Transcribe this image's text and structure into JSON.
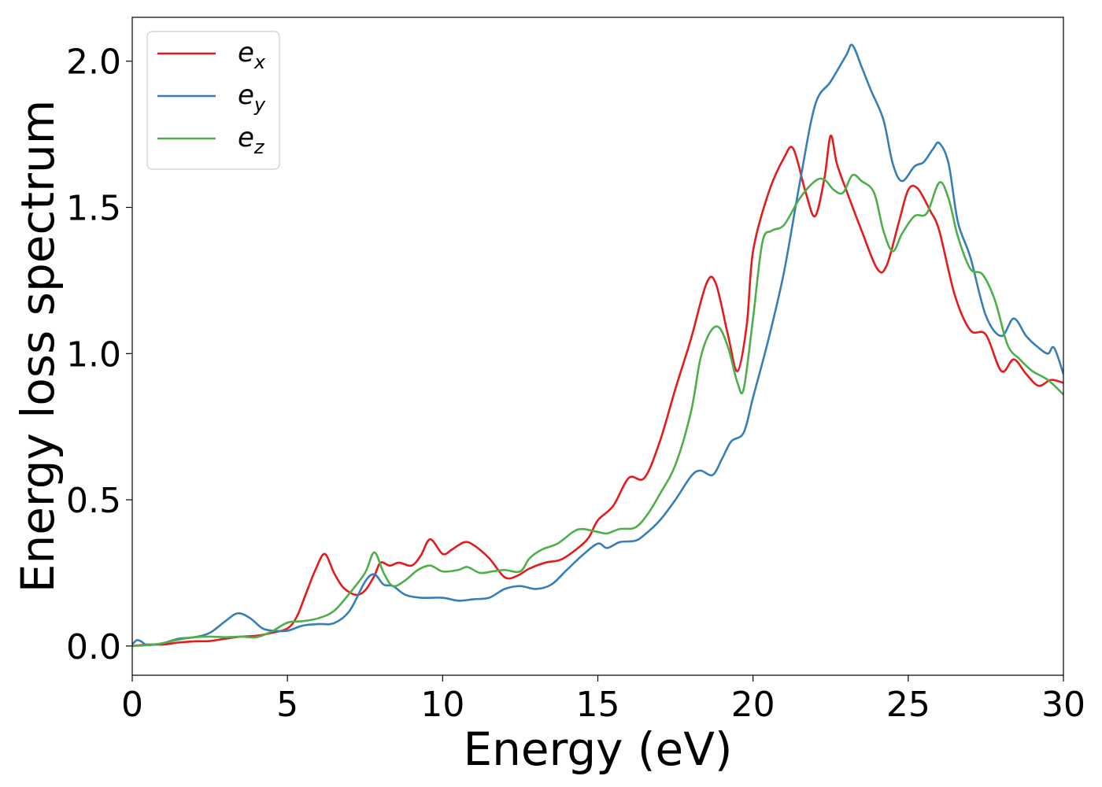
{
  "chart_data": {
    "type": "line",
    "title": "",
    "xlabel": "Energy (eV)",
    "ylabel": "Energy loss spectrum",
    "xlim": [
      0,
      30
    ],
    "ylim": [
      -0.1,
      2.15
    ],
    "xticks": [
      0,
      5,
      10,
      15,
      20,
      25,
      30
    ],
    "xtick_labels": [
      "0",
      "5",
      "10",
      "15",
      "20",
      "25",
      "30"
    ],
    "yticks": [
      0.0,
      0.5,
      1.0,
      1.5,
      2.0
    ],
    "ytick_labels": [
      "0.0",
      "0.5",
      "1.0",
      "1.5",
      "2.0"
    ],
    "grid": false,
    "legend_position": "top-left",
    "series": [
      {
        "name": "e_x",
        "legend_base": "e",
        "legend_sub": "x",
        "color": "#e41a1c",
        "points": [
          [
            0.0,
            0.0
          ],
          [
            0.5,
            0.005
          ],
          [
            1.0,
            0.005
          ],
          [
            1.5,
            0.012
          ],
          [
            2.0,
            0.016
          ],
          [
            2.5,
            0.017
          ],
          [
            3.0,
            0.025
          ],
          [
            3.5,
            0.032
          ],
          [
            4.0,
            0.035
          ],
          [
            4.5,
            0.045
          ],
          [
            5.0,
            0.06
          ],
          [
            5.3,
            0.1
          ],
          [
            5.6,
            0.18
          ],
          [
            5.9,
            0.26
          ],
          [
            6.2,
            0.315
          ],
          [
            6.5,
            0.25
          ],
          [
            6.8,
            0.2
          ],
          [
            7.2,
            0.175
          ],
          [
            7.5,
            0.19
          ],
          [
            7.8,
            0.24
          ],
          [
            8.0,
            0.285
          ],
          [
            8.3,
            0.275
          ],
          [
            8.6,
            0.285
          ],
          [
            9.0,
            0.275
          ],
          [
            9.3,
            0.31
          ],
          [
            9.6,
            0.365
          ],
          [
            10.0,
            0.315
          ],
          [
            10.3,
            0.33
          ],
          [
            10.7,
            0.355
          ],
          [
            11.0,
            0.345
          ],
          [
            11.5,
            0.3
          ],
          [
            12.0,
            0.235
          ],
          [
            12.4,
            0.24
          ],
          [
            12.8,
            0.265
          ],
          [
            13.3,
            0.285
          ],
          [
            13.8,
            0.295
          ],
          [
            14.3,
            0.33
          ],
          [
            14.7,
            0.37
          ],
          [
            15.0,
            0.43
          ],
          [
            15.5,
            0.48
          ],
          [
            16.0,
            0.575
          ],
          [
            16.5,
            0.575
          ],
          [
            17.0,
            0.7
          ],
          [
            17.5,
            0.88
          ],
          [
            18.0,
            1.05
          ],
          [
            18.5,
            1.24
          ],
          [
            18.8,
            1.24
          ],
          [
            19.2,
            1.06
          ],
          [
            19.5,
            0.94
          ],
          [
            19.8,
            1.1
          ],
          [
            20.0,
            1.35
          ],
          [
            20.5,
            1.55
          ],
          [
            21.0,
            1.67
          ],
          [
            21.3,
            1.7
          ],
          [
            21.7,
            1.55
          ],
          [
            22.0,
            1.47
          ],
          [
            22.3,
            1.6
          ],
          [
            22.5,
            1.745
          ],
          [
            22.7,
            1.65
          ],
          [
            23.0,
            1.56
          ],
          [
            23.5,
            1.42
          ],
          [
            24.0,
            1.29
          ],
          [
            24.3,
            1.3
          ],
          [
            24.7,
            1.45
          ],
          [
            25.0,
            1.56
          ],
          [
            25.3,
            1.565
          ],
          [
            25.7,
            1.49
          ],
          [
            26.0,
            1.42
          ],
          [
            26.5,
            1.2
          ],
          [
            27.0,
            1.08
          ],
          [
            27.5,
            1.065
          ],
          [
            28.0,
            0.94
          ],
          [
            28.4,
            0.98
          ],
          [
            28.8,
            0.93
          ],
          [
            29.2,
            0.89
          ],
          [
            29.6,
            0.91
          ],
          [
            30.0,
            0.9
          ]
        ]
      },
      {
        "name": "e_y",
        "legend_base": "e",
        "legend_sub": "y",
        "color": "#377eb8",
        "points": [
          [
            0.0,
            0.005
          ],
          [
            0.15,
            0.02
          ],
          [
            0.3,
            0.015
          ],
          [
            0.5,
            0.003
          ],
          [
            1.0,
            0.01
          ],
          [
            1.5,
            0.025
          ],
          [
            2.0,
            0.03
          ],
          [
            2.5,
            0.045
          ],
          [
            3.0,
            0.085
          ],
          [
            3.4,
            0.112
          ],
          [
            3.8,
            0.095
          ],
          [
            4.2,
            0.06
          ],
          [
            4.6,
            0.052
          ],
          [
            5.0,
            0.052
          ],
          [
            5.5,
            0.07
          ],
          [
            6.0,
            0.075
          ],
          [
            6.5,
            0.078
          ],
          [
            7.0,
            0.12
          ],
          [
            7.5,
            0.22
          ],
          [
            7.8,
            0.245
          ],
          [
            8.1,
            0.21
          ],
          [
            8.4,
            0.205
          ],
          [
            8.8,
            0.175
          ],
          [
            9.3,
            0.165
          ],
          [
            10.0,
            0.165
          ],
          [
            10.5,
            0.155
          ],
          [
            11.0,
            0.16
          ],
          [
            11.5,
            0.165
          ],
          [
            12.0,
            0.195
          ],
          [
            12.5,
            0.205
          ],
          [
            13.0,
            0.195
          ],
          [
            13.5,
            0.21
          ],
          [
            14.0,
            0.26
          ],
          [
            14.5,
            0.31
          ],
          [
            15.0,
            0.35
          ],
          [
            15.3,
            0.335
          ],
          [
            15.7,
            0.355
          ],
          [
            16.2,
            0.36
          ],
          [
            16.5,
            0.38
          ],
          [
            17.0,
            0.43
          ],
          [
            17.5,
            0.5
          ],
          [
            18.0,
            0.58
          ],
          [
            18.3,
            0.6
          ],
          [
            18.7,
            0.585
          ],
          [
            19.0,
            0.64
          ],
          [
            19.3,
            0.7
          ],
          [
            19.7,
            0.73
          ],
          [
            20.0,
            0.85
          ],
          [
            20.5,
            1.05
          ],
          [
            21.0,
            1.28
          ],
          [
            21.5,
            1.58
          ],
          [
            22.0,
            1.85
          ],
          [
            22.5,
            1.93
          ],
          [
            23.0,
            2.02
          ],
          [
            23.2,
            2.055
          ],
          [
            23.5,
            1.98
          ],
          [
            23.8,
            1.9
          ],
          [
            24.2,
            1.8
          ],
          [
            24.5,
            1.65
          ],
          [
            24.8,
            1.59
          ],
          [
            25.2,
            1.64
          ],
          [
            25.5,
            1.655
          ],
          [
            25.8,
            1.7
          ],
          [
            26.0,
            1.72
          ],
          [
            26.3,
            1.65
          ],
          [
            26.6,
            1.45
          ],
          [
            27.0,
            1.33
          ],
          [
            27.5,
            1.13
          ],
          [
            28.0,
            1.06
          ],
          [
            28.4,
            1.12
          ],
          [
            28.8,
            1.06
          ],
          [
            29.2,
            1.02
          ],
          [
            29.5,
            1.0
          ],
          [
            29.7,
            1.02
          ],
          [
            30.0,
            0.93
          ]
        ]
      },
      {
        "name": "e_z",
        "legend_base": "e",
        "legend_sub": "z",
        "color": "#4daf4a",
        "points": [
          [
            0.0,
            0.0
          ],
          [
            0.5,
            0.003
          ],
          [
            1.0,
            0.01
          ],
          [
            1.5,
            0.022
          ],
          [
            2.0,
            0.03
          ],
          [
            2.5,
            0.032
          ],
          [
            3.0,
            0.03
          ],
          [
            3.5,
            0.032
          ],
          [
            4.0,
            0.03
          ],
          [
            4.5,
            0.05
          ],
          [
            5.0,
            0.08
          ],
          [
            5.5,
            0.085
          ],
          [
            6.0,
            0.095
          ],
          [
            6.5,
            0.12
          ],
          [
            7.0,
            0.18
          ],
          [
            7.5,
            0.25
          ],
          [
            7.8,
            0.32
          ],
          [
            8.1,
            0.25
          ],
          [
            8.4,
            0.205
          ],
          [
            8.8,
            0.225
          ],
          [
            9.2,
            0.26
          ],
          [
            9.6,
            0.275
          ],
          [
            10.0,
            0.255
          ],
          [
            10.5,
            0.26
          ],
          [
            10.8,
            0.27
          ],
          [
            11.2,
            0.25
          ],
          [
            11.6,
            0.255
          ],
          [
            12.0,
            0.26
          ],
          [
            12.5,
            0.255
          ],
          [
            12.8,
            0.3
          ],
          [
            13.2,
            0.33
          ],
          [
            13.7,
            0.35
          ],
          [
            14.2,
            0.39
          ],
          [
            14.5,
            0.4
          ],
          [
            15.0,
            0.39
          ],
          [
            15.3,
            0.385
          ],
          [
            15.7,
            0.4
          ],
          [
            16.2,
            0.405
          ],
          [
            16.6,
            0.45
          ],
          [
            17.0,
            0.52
          ],
          [
            17.5,
            0.62
          ],
          [
            18.0,
            0.8
          ],
          [
            18.3,
            0.98
          ],
          [
            18.6,
            1.07
          ],
          [
            18.9,
            1.09
          ],
          [
            19.2,
            1.02
          ],
          [
            19.5,
            0.9
          ],
          [
            19.7,
            0.88
          ],
          [
            20.0,
            1.12
          ],
          [
            20.3,
            1.38
          ],
          [
            20.6,
            1.42
          ],
          [
            21.0,
            1.44
          ],
          [
            21.5,
            1.53
          ],
          [
            22.0,
            1.59
          ],
          [
            22.3,
            1.595
          ],
          [
            22.6,
            1.56
          ],
          [
            22.9,
            1.55
          ],
          [
            23.2,
            1.61
          ],
          [
            23.5,
            1.59
          ],
          [
            23.9,
            1.55
          ],
          [
            24.2,
            1.42
          ],
          [
            24.5,
            1.35
          ],
          [
            24.8,
            1.41
          ],
          [
            25.2,
            1.47
          ],
          [
            25.6,
            1.48
          ],
          [
            26.0,
            1.585
          ],
          [
            26.3,
            1.53
          ],
          [
            26.6,
            1.4
          ],
          [
            27.0,
            1.29
          ],
          [
            27.4,
            1.27
          ],
          [
            27.8,
            1.18
          ],
          [
            28.2,
            1.03
          ],
          [
            28.6,
            0.98
          ],
          [
            29.0,
            0.94
          ],
          [
            29.5,
            0.91
          ],
          [
            30.0,
            0.86
          ]
        ]
      }
    ]
  }
}
